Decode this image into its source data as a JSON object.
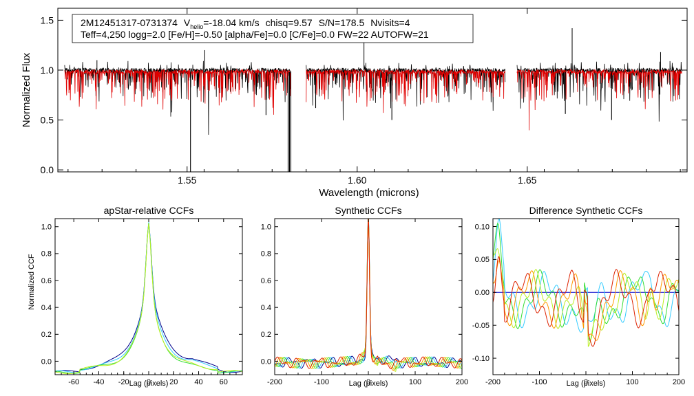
{
  "header": {
    "star_id": "2M12451317-0731374",
    "vhelio_prefix": "V",
    "vhelio_sub": "helio",
    "vhelio_value": "=-18.04 km/s",
    "chisq": "chisq=9.57",
    "snr": "S/N=178.5",
    "nvisits": "Nvisits=4",
    "line2": "Teff=4,250 logg=2.0 [Fe/H]=-0.50 [alpha/Fe]=0.0 [C/Fe]=0.0 FW=22 AUTOFW=21"
  },
  "chart_data": [
    {
      "id": "spectrum",
      "type": "line",
      "title": "",
      "xlabel": "Wavelength (microns)",
      "ylabel": "Normalized Flux",
      "xlim": [
        1.512,
        1.697
      ],
      "ylim": [
        -0.02,
        1.62
      ],
      "xticks": [
        1.55,
        1.6,
        1.65
      ],
      "xtick_labels": [
        "1.55",
        "1.60",
        "1.65"
      ],
      "yticks": [
        0.0,
        0.5,
        1.0,
        1.5
      ],
      "ytick_labels": [
        "0.0",
        "0.5",
        "1.0",
        "1.5"
      ],
      "chips": [
        [
          1.514,
          1.5805
        ],
        [
          1.585,
          1.6435
        ],
        [
          1.647,
          1.6955
        ]
      ],
      "series": [
        {
          "name": "observed",
          "color": "#000000"
        },
        {
          "name": "model",
          "color": "#e00000"
        }
      ],
      "features": {
        "spikes": [
          [
            1.5552,
            1.2
          ],
          [
            1.602,
            1.28
          ],
          [
            1.6632,
            1.42
          ],
          [
            1.6892,
            1.18
          ],
          [
            1.5235,
            1.1
          ]
        ],
        "deep_dips": [
          [
            1.551,
            -0.02
          ],
          [
            1.5797,
            -0.02
          ],
          [
            1.5801,
            -0.02
          ],
          [
            1.5805,
            -0.02
          ],
          [
            1.5878,
            0.62
          ],
          [
            1.6102,
            0.5
          ],
          [
            1.6748,
            0.5
          ],
          [
            1.5732,
            0.55
          ],
          [
            1.6612,
            0.56
          ]
        ]
      }
    },
    {
      "id": "apstar-ccf",
      "type": "line",
      "title": "apStar-relative CCFs",
      "xlabel": "Lag (pixels)",
      "ylabel": "Normalized CCF",
      "xlim": [
        -75,
        75
      ],
      "ylim": [
        -0.1,
        1.06
      ],
      "xticks": [
        -60,
        -40,
        -20,
        0,
        20,
        40,
        60
      ],
      "xtick_labels": [
        "-60",
        "-40",
        "-20",
        "0",
        "20",
        "40",
        "60"
      ],
      "yticks": [
        0.0,
        0.2,
        0.4,
        0.6,
        0.8,
        1.0
      ],
      "ytick_labels": [
        "0.0",
        "0.2",
        "0.4",
        "0.6",
        "0.8",
        "1.0"
      ],
      "series": [
        {
          "name": "blue",
          "color": "#00008b",
          "width": 11,
          "wing": 0.04,
          "phase": 0.3
        },
        {
          "name": "cyan",
          "color": "#33ccff",
          "width": 10,
          "wing": 0.03,
          "phase": 1.1
        },
        {
          "name": "green",
          "color": "#33dd33",
          "width": 9,
          "wing": 0.0,
          "phase": 2.0
        },
        {
          "name": "yellow-green",
          "color": "#bbee22",
          "width": 9,
          "wing": 0.01,
          "phase": 2.7
        }
      ]
    },
    {
      "id": "synthetic-ccf",
      "type": "line",
      "title": "Synthetic CCFs",
      "xlabel": "Lag (pixels)",
      "ylabel": "",
      "xlim": [
        -200,
        200
      ],
      "ylim": [
        -0.1,
        1.06
      ],
      "xticks": [
        -200,
        -100,
        0,
        100,
        200
      ],
      "xtick_labels": [
        "-200",
        "-100",
        "0",
        "100",
        "200"
      ],
      "yticks": [
        0.0,
        0.2,
        0.4,
        0.6,
        0.8,
        1.0
      ],
      "ytick_labels": [
        "0.0",
        "0.2",
        "0.4",
        "0.6",
        "0.8",
        "1.0"
      ],
      "series": [
        {
          "name": "blue",
          "color": "#00008b",
          "phase": 0.2
        },
        {
          "name": "cyan",
          "color": "#33ccff",
          "phase": 0.9
        },
        {
          "name": "green",
          "color": "#33dd33",
          "phase": 1.7
        },
        {
          "name": "yellow-green",
          "color": "#bbee22",
          "phase": 2.4
        },
        {
          "name": "orange",
          "color": "#ff9900",
          "phase": 3.1
        },
        {
          "name": "red",
          "color": "#dd2200",
          "phase": 3.9
        }
      ]
    },
    {
      "id": "difference-ccf",
      "type": "line",
      "title": "Difference Synthetic CCFs",
      "xlabel": "Lag (pixels)",
      "ylabel": "",
      "xlim": [
        -200,
        200
      ],
      "ylim": [
        -0.125,
        0.112
      ],
      "xticks": [
        -200,
        -100,
        0,
        100,
        200
      ],
      "xtick_labels": [
        "-200",
        "-100",
        "0",
        "100",
        "200"
      ],
      "yticks": [
        -0.1,
        -0.05,
        0.0,
        0.05,
        0.1
      ],
      "ytick_labels": [
        "-0.10",
        "-0.05",
        "0.00",
        "0.05",
        "0.10"
      ],
      "zero_line_color": "#0000cc",
      "series": [
        {
          "name": "cyan",
          "color": "#33ccff",
          "phase": 0.5
        },
        {
          "name": "green",
          "color": "#33dd33",
          "phase": 1.3
        },
        {
          "name": "yellow-green",
          "color": "#bbee22",
          "phase": 2.1
        },
        {
          "name": "orange",
          "color": "#ff9900",
          "phase": 2.9
        },
        {
          "name": "red",
          "color": "#dd2200",
          "phase": 3.7
        }
      ]
    }
  ]
}
